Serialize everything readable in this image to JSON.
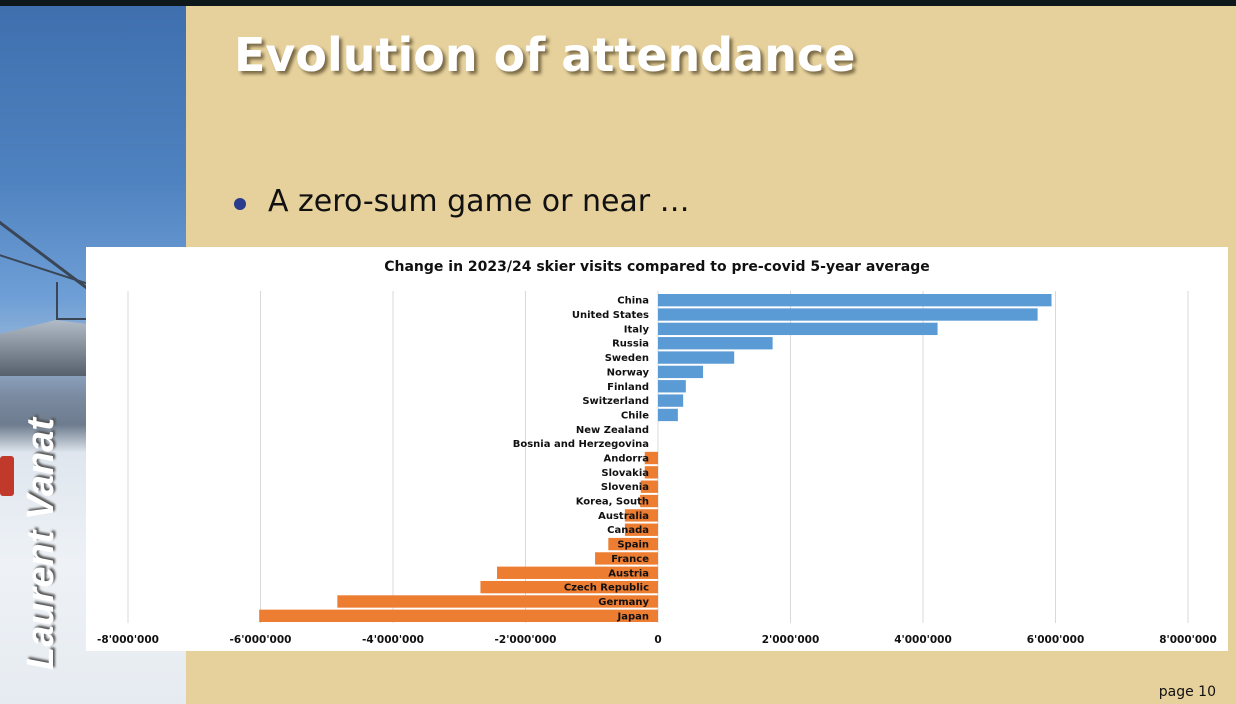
{
  "slide": {
    "title": "Evolution of attendance",
    "bullet": "A zero-sum game or near …",
    "author": "Laurent Vanat",
    "page_label": "page 10"
  },
  "colors": {
    "background": "#e6d19c",
    "positive_bar": "#5b9bd5",
    "negative_bar": "#ed7d31",
    "bullet": "#2a3a8c"
  },
  "chart_data": {
    "type": "bar",
    "orientation": "horizontal",
    "title": "Change in 2023/24 skier visits compared to pre-covid 5-year average",
    "xlabel": "",
    "ylabel": "",
    "xlim": [
      -8000000,
      8000000
    ],
    "xticks": [
      -8000000,
      -6000000,
      -4000000,
      -2000000,
      0,
      2000000,
      4000000,
      6000000,
      8000000
    ],
    "xtick_labels": [
      "-8'000'000",
      "-6'000'000",
      "-4'000'000",
      "-2'000'000",
      "0",
      "2'000'000",
      "4'000'000",
      "6'000'000",
      "8'000'000"
    ],
    "grid": true,
    "legend": "none",
    "categories": [
      "China",
      "United States",
      "Italy",
      "Russia",
      "Sweden",
      "Norway",
      "Finland",
      "Switzerland",
      "Chile",
      "New Zealand",
      "Bosnia and Herzegovina",
      "Andorra",
      "Slovakia",
      "Slovenia",
      "Korea, South",
      "Australia",
      "Canada",
      "Spain",
      "France",
      "Austria",
      "Czech Republic",
      "Germany",
      "Japan"
    ],
    "values": [
      5940000,
      5730000,
      4220000,
      1730000,
      1150000,
      680000,
      420000,
      380000,
      300000,
      0,
      0,
      -200000,
      -200000,
      -260000,
      -270000,
      -500000,
      -500000,
      -750000,
      -950000,
      -2430000,
      -2680000,
      -4840000,
      -6020000
    ]
  }
}
